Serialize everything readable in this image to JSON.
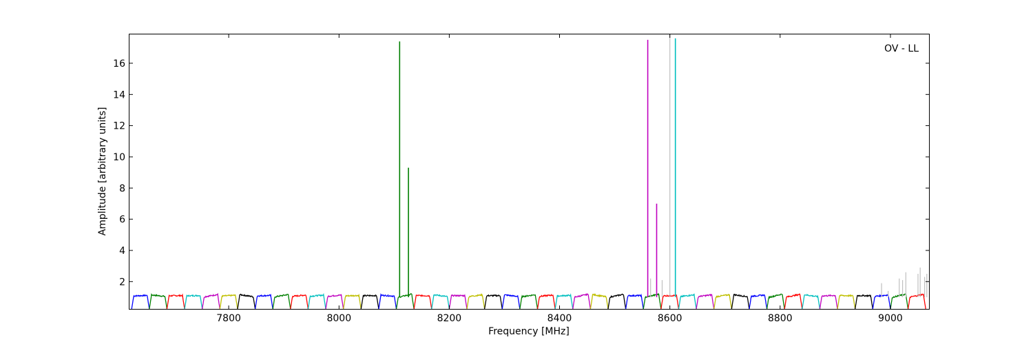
{
  "chart_data": {
    "type": "line",
    "xlabel": "Frequency [MHz]",
    "ylabel": "Amplitude [arbitrary units]",
    "annotation": "OV - LL",
    "xlim": [
      7620,
      9070
    ],
    "ylim": [
      0.25,
      17.85
    ],
    "xticks": [
      7800,
      8000,
      8200,
      8400,
      8600,
      8800,
      9000
    ],
    "yticks": [
      2,
      4,
      6,
      8,
      10,
      12,
      14,
      16
    ],
    "grid": false,
    "legend": "none",
    "channel_width_mhz": 32,
    "channel_start_mhz": [
      7624,
      7656,
      7688,
      7720,
      7752,
      7784,
      7816,
      7848,
      7880,
      7912,
      7944,
      7976,
      8008,
      8040,
      8072,
      8104,
      8136,
      8168,
      8200,
      8232,
      8264,
      8296,
      8328,
      8360,
      8392,
      8424,
      8456,
      8488,
      8520,
      8552,
      8584,
      8616,
      8648,
      8680,
      8712,
      8744,
      8776,
      8808,
      8840,
      8872,
      8904,
      8936,
      8968,
      9000,
      9032
    ],
    "channel_colors": [
      "#0000ff",
      "#007f00",
      "#ff0000",
      "#00bfbf",
      "#bf00bf",
      "#bfbf00",
      "#000000"
    ],
    "series": [
      {
        "color": "#007f00",
        "spikes": [
          {
            "x": 8110,
            "y": 17.4
          },
          {
            "x": 8126,
            "y": 9.3
          }
        ]
      },
      {
        "color": "#bf00bf",
        "spikes": [
          {
            "x": 8560,
            "y": 17.5
          },
          {
            "x": 8576,
            "y": 7.0
          }
        ]
      },
      {
        "color": "#00bfbf",
        "spikes": [
          {
            "x": 8610,
            "y": 17.6
          }
        ]
      },
      {
        "color": "#bfbfbf",
        "spikes": [
          {
            "x": 8565,
            "y": 2.2
          },
          {
            "x": 8586,
            "y": 2.1
          },
          {
            "x": 8600,
            "y": 17.9
          },
          {
            "x": 8984,
            "y": 1.9
          },
          {
            "x": 8996,
            "y": 1.4
          },
          {
            "x": 9016,
            "y": 2.2
          },
          {
            "x": 9022,
            "y": 2.1
          },
          {
            "x": 9028,
            "y": 2.6
          },
          {
            "x": 9050,
            "y": 2.5
          },
          {
            "x": 9054,
            "y": 2.9
          },
          {
            "x": 9062,
            "y": 2.3
          },
          {
            "x": 9066,
            "y": 2.5
          }
        ]
      }
    ]
  }
}
